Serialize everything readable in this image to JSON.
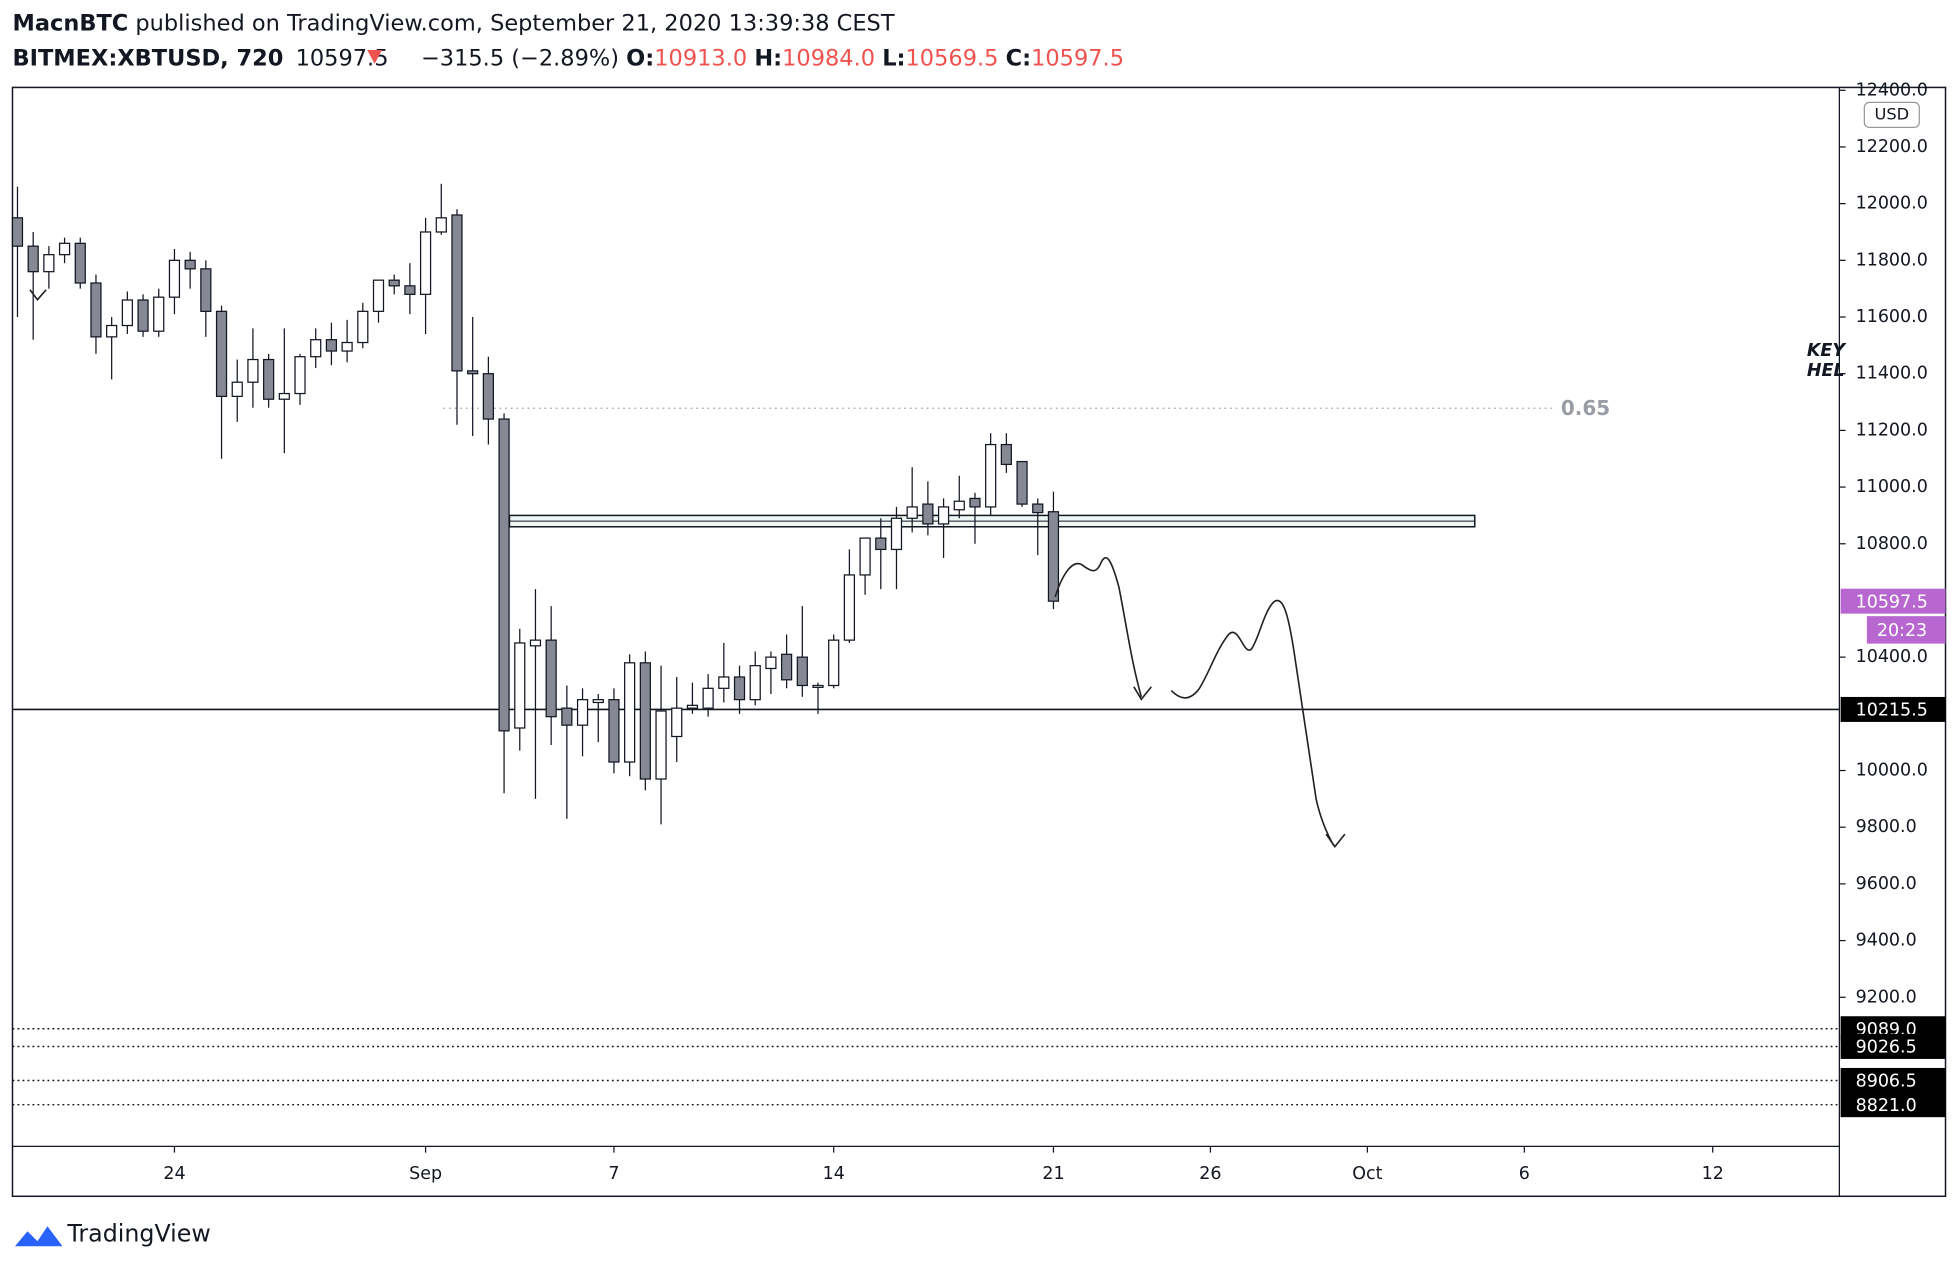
{
  "header": {
    "author": "MacnBTC",
    "published": "published on TradingView.com, September 21, 2020 13:39:38 CEST",
    "symbol": "BITMEX:XBTUSD, 720",
    "price": "10597.5",
    "change": "−315.5 (−2.89%)",
    "o_label": "O:",
    "o": "10913.0",
    "h_label": "H:",
    "h": "10984.0",
    "l_label": "L:",
    "l": "10569.5",
    "c_label": "C:",
    "c": "10597.5"
  },
  "footer": {
    "brand": "TradingView"
  },
  "chart_data": {
    "type": "candlestick",
    "up_color": "#ffffff",
    "down_color": "#868993",
    "currency": "USD",
    "categories": [
      null,
      null,
      null,
      null,
      null,
      null,
      null,
      null,
      null,
      null,
      "24",
      null,
      null,
      null,
      null,
      null,
      null,
      null,
      null,
      null,
      null,
      null,
      null,
      null,
      null,
      null,
      "Sep",
      null,
      null,
      null,
      null,
      null,
      null,
      null,
      null,
      null,
      null,
      null,
      "7",
      null,
      null,
      null,
      null,
      null,
      null,
      null,
      null,
      null,
      null,
      null,
      null,
      null,
      "14",
      null,
      null,
      null,
      null,
      null,
      null,
      null,
      null,
      null,
      null,
      null,
      null,
      null,
      "21",
      null,
      null,
      null,
      null,
      null,
      null,
      null,
      null,
      null,
      "26",
      null,
      null,
      null,
      null,
      null,
      null,
      null,
      null,
      null,
      "Oct",
      null,
      null,
      null,
      null,
      null,
      null,
      null,
      null,
      null,
      "6",
      null,
      null,
      null,
      null,
      null,
      null,
      null,
      null,
      null,
      null,
      null,
      "12",
      null,
      null,
      null,
      null,
      null,
      null,
      null,
      null
    ],
    "open": [
      11950,
      11850,
      11760,
      11820,
      11860,
      11720,
      11530,
      11570,
      11660,
      11550,
      11670,
      11800,
      11770,
      11620,
      11320,
      11370,
      11450,
      11310,
      11330,
      11460,
      11520,
      11480,
      11510,
      11620,
      11730,
      11710,
      11680,
      11900,
      11960,
      11410,
      11400,
      11240,
      10150,
      10440,
      10460,
      10220,
      10160,
      10240,
      10250,
      10030,
      10380,
      9970,
      10120,
      10220,
      10220,
      10290,
      10330,
      10250,
      10360,
      10410,
      10400,
      10300,
      10300,
      10460,
      10690,
      10820,
      10780,
      10890,
      10940,
      10870,
      10920,
      10960,
      10930,
      11150,
      11090,
      10940,
      10913,
      null,
      null,
      null,
      null,
      null,
      null,
      null,
      null,
      null,
      null,
      null,
      null,
      null,
      null,
      null,
      null,
      null,
      null,
      null,
      null,
      null,
      null,
      null,
      null,
      null,
      null,
      null,
      null,
      null,
      null,
      null,
      null,
      null,
      null,
      null,
      null,
      null,
      null,
      null,
      null,
      null,
      null,
      null,
      null,
      null,
      null,
      null,
      null,
      null,
      null
    ],
    "high": [
      12060,
      11900,
      11850,
      11880,
      11880,
      11750,
      11600,
      11690,
      11680,
      11700,
      11840,
      11830,
      11800,
      11640,
      11450,
      11560,
      11470,
      11560,
      11470,
      11560,
      11580,
      11590,
      11650,
      11730,
      11750,
      11790,
      11950,
      12070,
      11980,
      11600,
      11460,
      11260,
      10500,
      10640,
      10580,
      10300,
      10290,
      10270,
      10290,
      10410,
      10420,
      10370,
      10330,
      10310,
      10340,
      10450,
      10370,
      10420,
      10420,
      10480,
      10580,
      10310,
      10480,
      10780,
      10820,
      10890,
      10930,
      11070,
      11020,
      10960,
      11040,
      10980,
      11190,
      11190,
      11090,
      10960,
      10984,
      null,
      null,
      null,
      null,
      null,
      null,
      null,
      null,
      null,
      null,
      null,
      null,
      null,
      null,
      null,
      null,
      null,
      null,
      null,
      null,
      null,
      null,
      null,
      null,
      null,
      null,
      null,
      null,
      null,
      null,
      null,
      null,
      null,
      null,
      null,
      null,
      null,
      null,
      null,
      null,
      null,
      null,
      null,
      null,
      null,
      null,
      null,
      null,
      null,
      null
    ],
    "low": [
      11600,
      11520,
      11700,
      11790,
      11700,
      11470,
      11380,
      11540,
      11530,
      11530,
      11610,
      11700,
      11530,
      11100,
      11230,
      11280,
      11280,
      11120,
      11290,
      11420,
      11430,
      11440,
      11490,
      11580,
      11680,
      11610,
      11540,
      11890,
      11220,
      11180,
      11150,
      9920,
      10070,
      9900,
      10090,
      9830,
      10050,
      10100,
      9990,
      9980,
      9930,
      9810,
      10030,
      10200,
      10190,
      10240,
      10200,
      10230,
      10270,
      10290,
      10260,
      10200,
      10290,
      10450,
      10620,
      10640,
      10640,
      10840,
      10830,
      10750,
      10890,
      10800,
      10900,
      11050,
      10930,
      10760,
      10569.5,
      null,
      null,
      null,
      null,
      null,
      null,
      null,
      null,
      null,
      null,
      null,
      null,
      null,
      null,
      null,
      null,
      null,
      null,
      null,
      null,
      null,
      null,
      null,
      null,
      null,
      null,
      null,
      null,
      null,
      null,
      null,
      null,
      null,
      null,
      null,
      null,
      null,
      null,
      null,
      null,
      null,
      null,
      null,
      null,
      null,
      null,
      null,
      null,
      null,
      null
    ],
    "close": [
      11850,
      11760,
      11820,
      11860,
      11720,
      11530,
      11570,
      11660,
      11550,
      11670,
      11800,
      11770,
      11620,
      11320,
      11370,
      11450,
      11310,
      11330,
      11460,
      11520,
      11480,
      11510,
      11620,
      11730,
      11710,
      11680,
      11900,
      11950,
      11410,
      11400,
      11240,
      10140,
      10450,
      10460,
      10190,
      10160,
      10250,
      10250,
      10030,
      10380,
      9970,
      10210,
      10220,
      10230,
      10290,
      10330,
      10250,
      10370,
      10400,
      10320,
      10300,
      10300,
      10460,
      10690,
      10820,
      10780,
      10890,
      10930,
      10870,
      10930,
      10950,
      10930,
      11150,
      11080,
      10940,
      10910,
      10597.5,
      null,
      null,
      null,
      null,
      null,
      null,
      null,
      null,
      null,
      null,
      null,
      null,
      null,
      null,
      null,
      null,
      null,
      null,
      null,
      null,
      null,
      null,
      null,
      null,
      null,
      null,
      null,
      null,
      null,
      null,
      null,
      null,
      null,
      null,
      null,
      null,
      null,
      null,
      null,
      null,
      null,
      null,
      null,
      null,
      null,
      null,
      null,
      null,
      null,
      null
    ],
    "ylim": [
      8674,
      12410
    ],
    "yticks": [
      {
        "value": 9200,
        "label": "9200.0"
      },
      {
        "value": 9400,
        "label": "9400.0"
      },
      {
        "value": 9600,
        "label": "9600.0"
      },
      {
        "value": 9800,
        "label": "9800.0"
      },
      {
        "value": 10000,
        "label": "10000.0"
      },
      {
        "value": 10400,
        "label": "10400.0"
      },
      {
        "value": 10800,
        "label": "10800.0"
      },
      {
        "value": 11000,
        "label": "11000.0"
      },
      {
        "value": 11200,
        "label": "11200.0"
      },
      {
        "value": 11400,
        "label": "11400.0"
      },
      {
        "value": 11600,
        "label": "11600.0"
      },
      {
        "value": 11800,
        "label": "11800.0"
      },
      {
        "value": 12000,
        "label": "12000.0"
      },
      {
        "value": 12200,
        "label": "12200.0"
      },
      {
        "value": 12400,
        "label": "12400.0"
      }
    ],
    "hlines": [
      {
        "value": 10215.5,
        "label": "10215.5",
        "style": "solid"
      },
      {
        "value": 9089,
        "label": "9089.0",
        "style": "dotted"
      },
      {
        "value": 9026.5,
        "label": "9026.5",
        "style": "dotted"
      },
      {
        "value": 8906.5,
        "label": "8906.5",
        "style": "dotted"
      },
      {
        "value": 8821,
        "label": "8821.0",
        "style": "dotted"
      }
    ],
    "last_price": {
      "value": 10597.5,
      "label": "10597.5",
      "countdown": "20:23",
      "color": "#b867d1"
    },
    "fib": {
      "value": 11278,
      "label": "0.65"
    },
    "key_zone": [
      10860,
      10900
    ],
    "side_note": [
      "KEY",
      "HEL"
    ]
  }
}
